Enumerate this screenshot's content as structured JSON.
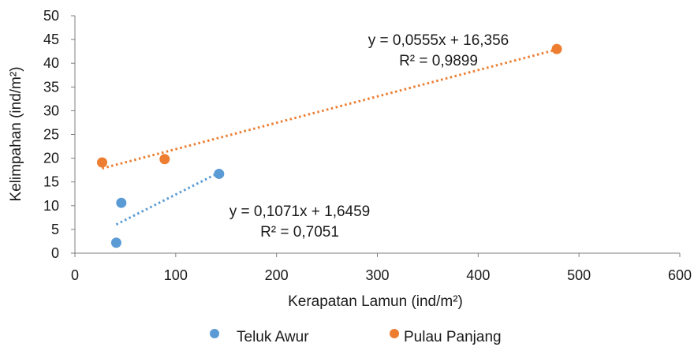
{
  "chart_data": {
    "type": "scatter",
    "title": "",
    "xlabel": "Kerapatan Lamun (ind/m²)",
    "ylabel": "Kelimpahan  (ind/m²)",
    "xlim": [
      0,
      600
    ],
    "ylim": [
      0,
      50
    ],
    "xticks": [
      "0",
      "100",
      "200",
      "300",
      "400",
      "500",
      "600"
    ],
    "yticks": [
      "0",
      "5",
      "10",
      "15",
      "20",
      "25",
      "30",
      "35",
      "40",
      "45",
      "50"
    ],
    "grid": false,
    "legend_position": "bottom",
    "series": [
      {
        "name": "Teluk Awur",
        "color": "#5b9bd5",
        "points": [
          [
            41,
            2.2
          ],
          [
            46,
            10.6
          ],
          [
            143,
            16.7
          ]
        ],
        "trendline": {
          "slope": 0.1071,
          "intercept": 1.6459,
          "x_range": [
            41,
            143
          ],
          "equation": "y = 0,1071x + 1,6459",
          "r2": "R² = 0,7051"
        }
      },
      {
        "name": "Pulau Panjang",
        "color": "#ed7d31",
        "points": [
          [
            27,
            19.1
          ],
          [
            89,
            19.8
          ],
          [
            478,
            43.0
          ]
        ],
        "trendline": {
          "slope": 0.0555,
          "intercept": 16.356,
          "x_range": [
            27,
            478
          ],
          "equation": "y = 0,0555x + 16,356",
          "r2": "R² = 0,9899"
        }
      }
    ]
  }
}
